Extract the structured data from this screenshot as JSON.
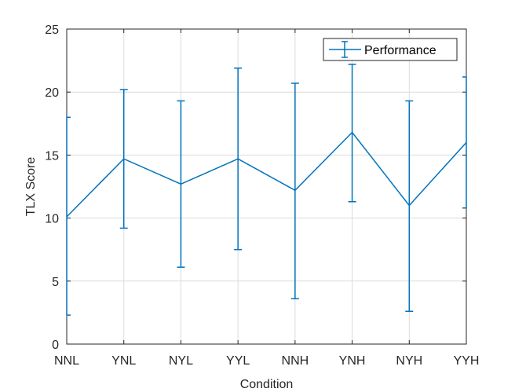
{
  "chart_data": {
    "type": "line",
    "xlabel": "Condition",
    "ylabel": "TLX Score",
    "categories": [
      "NNL",
      "YNL",
      "NYL",
      "YYL",
      "NNH",
      "YNH",
      "NYH",
      "YYH"
    ],
    "ylim": [
      0,
      25
    ],
    "yticks": [
      0,
      5,
      10,
      15,
      20,
      25
    ],
    "grid": true,
    "legend_position": "top-right",
    "series": [
      {
        "name": "Performance",
        "color": "#0072BD",
        "values": [
          10.1,
          14.7,
          12.7,
          14.7,
          12.2,
          16.8,
          11.0,
          16.0
        ],
        "error_low": [
          2.3,
          9.2,
          6.1,
          7.5,
          3.6,
          11.3,
          2.6,
          10.8
        ],
        "error_high": [
          18.0,
          20.2,
          19.3,
          21.9,
          20.7,
          22.2,
          19.3,
          21.2
        ]
      }
    ]
  }
}
